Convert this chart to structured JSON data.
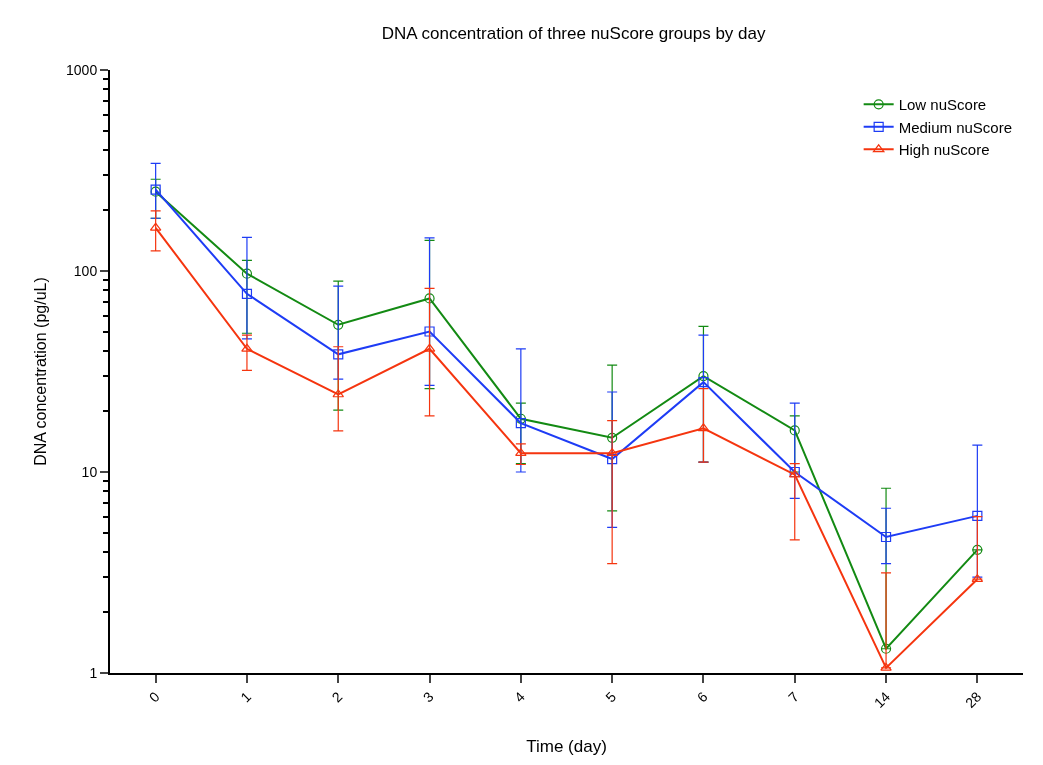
{
  "chart_data": {
    "type": "line",
    "title": "DNA concentration of three nuScore groups by day",
    "xlabel": "Time (day)",
    "ylabel": "DNA concentration (pg/uL)",
    "categories": [
      "0",
      "1",
      "2",
      "3",
      "4",
      "5",
      "6",
      "7",
      "14",
      "28"
    ],
    "log": true,
    "ylim": [
      1,
      1000
    ],
    "yticks": [
      1,
      10,
      100,
      1000
    ],
    "legend": "top right",
    "line_style": "solid",
    "series": [
      {
        "name": "Low nuScore",
        "color": "#138a13",
        "marker": "circle",
        "values": [
          248,
          97,
          54,
          73,
          18.4,
          14.8,
          30,
          16.1,
          1.32,
          4.1
        ],
        "errors": [
          [
            183,
            286
          ],
          [
            49,
            113
          ],
          [
            20.3,
            89
          ],
          [
            26,
            142
          ],
          [
            11,
            22
          ],
          [
            6.4,
            34
          ],
          [
            11.2,
            53
          ],
          [
            10,
            19
          ],
          [
            1.32,
            8.3
          ],
          null
        ]
      },
      {
        "name": "Medium nuScore",
        "color": "#1e3cf5",
        "marker": "square",
        "values": [
          254,
          77,
          38.5,
          50,
          17.5,
          11.6,
          28,
          10,
          4.75,
          6.05
        ],
        "errors": [
          [
            183,
            343
          ],
          [
            46,
            147
          ],
          [
            29,
            84
          ],
          [
            27,
            146
          ],
          [
            10,
            41
          ],
          [
            5.3,
            25
          ],
          [
            11.2,
            48
          ],
          [
            7.4,
            22
          ],
          [
            3.5,
            6.6
          ],
          [
            3.0,
            13.6
          ]
        ]
      },
      {
        "name": "High nuScore",
        "color": "#f5350f",
        "marker": "triangle",
        "values": [
          164,
          41,
          24.3,
          41,
          12.4,
          12.4,
          16.5,
          9.7,
          1.06,
          2.93
        ],
        "errors": [
          [
            126,
            199
          ],
          [
            32,
            48
          ],
          [
            16,
            42
          ],
          [
            19,
            82
          ],
          [
            10.9,
            13.8
          ],
          [
            3.5,
            18
          ],
          [
            11.2,
            26
          ],
          [
            4.6,
            11
          ],
          [
            1.06,
            3.15
          ],
          [
            2.93,
            6.0
          ]
        ]
      }
    ]
  }
}
